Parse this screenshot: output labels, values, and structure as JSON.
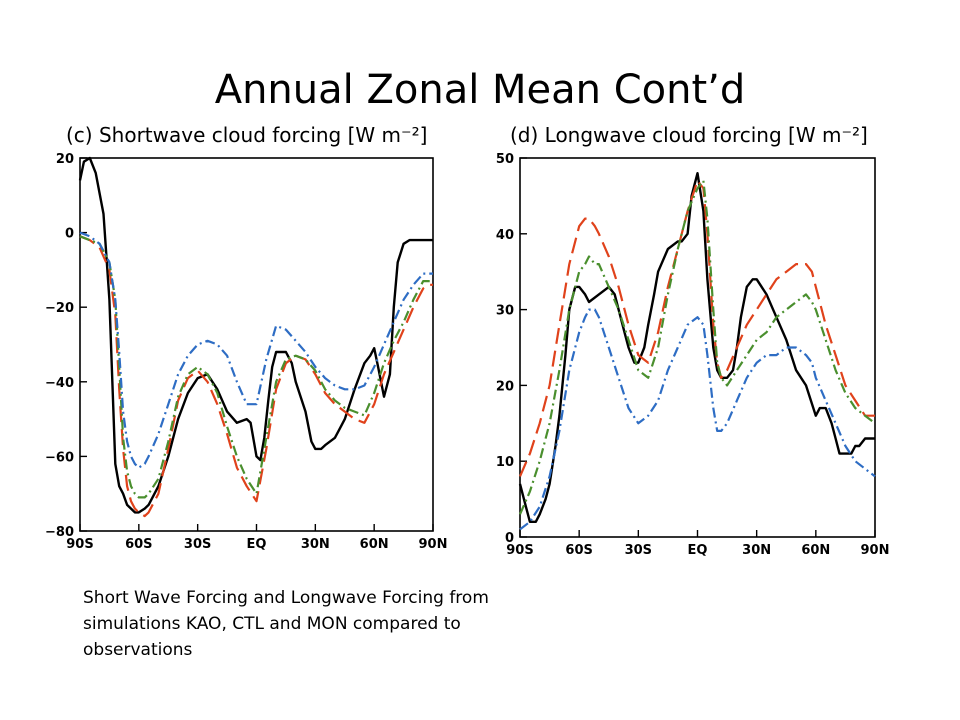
{
  "slide": {
    "title": "Annual Zonal Mean Cont’d",
    "caption": "Short Wave Forcing and Longwave Forcing from simulations KAO, CTL and MON compared to observations"
  },
  "chart_data": [
    {
      "type": "line",
      "title": "(c) Shortwave cloud forcing [W m⁻²]",
      "xlabel": "",
      "ylabel": "",
      "x_unit": "latitude (degrees N)",
      "xlim": [
        -90,
        90
      ],
      "ylim": [
        -80,
        20
      ],
      "x_ticks": [
        -90,
        -60,
        -30,
        0,
        30,
        60,
        90
      ],
      "x_tick_labels": [
        "90S",
        "60S",
        "30S",
        "EQ",
        "30N",
        "60N",
        "90N"
      ],
      "y_ticks": [
        20,
        0,
        -20,
        -40,
        -60,
        -80
      ],
      "y_tick_labels": [
        "20",
        "0",
        "−20",
        "−40",
        "−60",
        "−80"
      ],
      "grid": false,
      "series": [
        {
          "style": "solid",
          "color": "#000000",
          "x": [
            -90,
            -88,
            -85,
            -82,
            -78,
            -75,
            -72,
            -70,
            -68,
            -66,
            -64,
            -62,
            -60,
            -57,
            -55,
            -50,
            -45,
            -40,
            -35,
            -30,
            -25,
            -20,
            -15,
            -10,
            -5,
            -3,
            0,
            2,
            4,
            6,
            8,
            10,
            12,
            15,
            18,
            20,
            25,
            28,
            30,
            33,
            35,
            40,
            42,
            45,
            50,
            55,
            58,
            60,
            62,
            65,
            68,
            70,
            72,
            75,
            78,
            80,
            82,
            85,
            88,
            90
          ],
          "y": [
            14,
            19,
            20,
            16,
            5,
            -18,
            -62,
            -68,
            -70,
            -73,
            -74,
            -75,
            -75,
            -74,
            -73,
            -68,
            -60,
            -50,
            -43,
            -39,
            -38,
            -42,
            -48,
            -51,
            -50,
            -51,
            -60,
            -61,
            -55,
            -45,
            -36,
            -32,
            -32,
            -32,
            -35,
            -40,
            -48,
            -56,
            -58,
            -58,
            -57,
            -55,
            -53,
            -50,
            -42,
            -35,
            -33,
            -31,
            -36,
            -44,
            -38,
            -20,
            -8,
            -3,
            -2,
            -2,
            -2,
            -2,
            -2,
            -2
          ]
        },
        {
          "style": "dashed",
          "color": "#e0421b",
          "x": [
            -90,
            -85,
            -80,
            -75,
            -72,
            -70,
            -68,
            -66,
            -64,
            -62,
            -60,
            -57,
            -55,
            -50,
            -45,
            -40,
            -35,
            -30,
            -25,
            -20,
            -15,
            -10,
            -5,
            0,
            5,
            10,
            15,
            20,
            25,
            30,
            35,
            40,
            45,
            50,
            55,
            60,
            65,
            70,
            75,
            80,
            85,
            88,
            90
          ],
          "y": [
            -1,
            -2,
            -4,
            -10,
            -22,
            -42,
            -58,
            -68,
            -72,
            -74,
            -75,
            -76,
            -75,
            -70,
            -58,
            -45,
            -39,
            -37,
            -40,
            -46,
            -54,
            -63,
            -68,
            -72,
            -58,
            -42,
            -35,
            -33,
            -34,
            -38,
            -43,
            -46,
            -48,
            -50,
            -51,
            -46,
            -38,
            -32,
            -26,
            -20,
            -15,
            -14,
            -14
          ]
        },
        {
          "style": "dash-dot",
          "color": "#4a8f2e",
          "x": [
            -90,
            -85,
            -80,
            -75,
            -72,
            -70,
            -68,
            -66,
            -64,
            -62,
            -60,
            -57,
            -55,
            -50,
            -45,
            -40,
            -35,
            -30,
            -25,
            -20,
            -15,
            -10,
            -5,
            0,
            5,
            10,
            15,
            20,
            25,
            30,
            35,
            40,
            45,
            50,
            55,
            60,
            65,
            70,
            75,
            80,
            85,
            88,
            90
          ],
          "y": [
            -1,
            -2,
            -3,
            -8,
            -18,
            -36,
            -55,
            -64,
            -68,
            -70,
            -71,
            -71,
            -70,
            -66,
            -56,
            -44,
            -38,
            -36,
            -38,
            -43,
            -52,
            -60,
            -66,
            -70,
            -55,
            -40,
            -34,
            -33,
            -34,
            -37,
            -42,
            -45,
            -47,
            -48,
            -49,
            -43,
            -35,
            -29,
            -24,
            -18,
            -13,
            -13,
            -13
          ]
        },
        {
          "style": "dash-dot",
          "color": "#2e6dc4",
          "x": [
            -90,
            -85,
            -80,
            -75,
            -72,
            -70,
            -68,
            -66,
            -64,
            -62,
            -60,
            -57,
            -55,
            -50,
            -45,
            -40,
            -35,
            -30,
            -25,
            -20,
            -15,
            -10,
            -5,
            0,
            5,
            10,
            15,
            20,
            25,
            30,
            35,
            40,
            45,
            50,
            55,
            60,
            65,
            70,
            75,
            80,
            85,
            88,
            90
          ],
          "y": [
            0,
            -1,
            -3,
            -8,
            -18,
            -32,
            -48,
            -56,
            -60,
            -62,
            -63,
            -62,
            -60,
            -54,
            -46,
            -38,
            -33,
            -30,
            -29,
            -30,
            -33,
            -40,
            -46,
            -46,
            -34,
            -25,
            -26,
            -29,
            -32,
            -36,
            -39,
            -41,
            -42,
            -42,
            -41,
            -36,
            -30,
            -24,
            -18,
            -14,
            -11,
            -11,
            -11
          ]
        }
      ]
    },
    {
      "type": "line",
      "title": "(d) Longwave cloud forcing [W m⁻²]",
      "xlabel": "",
      "ylabel": "",
      "x_unit": "latitude (degrees N)",
      "xlim": [
        -90,
        90
      ],
      "ylim": [
        0,
        50
      ],
      "x_ticks": [
        -90,
        -60,
        -30,
        0,
        30,
        60,
        90
      ],
      "x_tick_labels": [
        "90S",
        "60S",
        "30S",
        "EQ",
        "30N",
        "60N",
        "90N"
      ],
      "y_ticks": [
        50,
        40,
        30,
        20,
        10,
        0
      ],
      "y_tick_labels": [
        "50",
        "40",
        "30",
        "20",
        "10",
        "0"
      ],
      "grid": false,
      "series": [
        {
          "style": "solid",
          "color": "#000000",
          "x": [
            -90,
            -87,
            -85,
            -82,
            -80,
            -77,
            -75,
            -72,
            -70,
            -67,
            -65,
            -62,
            -60,
            -57,
            -55,
            -50,
            -45,
            -42,
            -40,
            -37,
            -35,
            -32,
            -30,
            -27,
            -25,
            -22,
            -20,
            -15,
            -10,
            -8,
            -5,
            -3,
            0,
            3,
            5,
            7,
            8,
            10,
            12,
            15,
            18,
            20,
            22,
            25,
            28,
            30,
            35,
            40,
            45,
            50,
            55,
            60,
            62,
            65,
            68,
            70,
            72,
            75,
            78,
            80,
            82,
            85,
            88,
            90
          ],
          "y": [
            7,
            4,
            2,
            2,
            3,
            5,
            7,
            12,
            16,
            24,
            30,
            33,
            33,
            32,
            31,
            32,
            33,
            32,
            30,
            27,
            25,
            23,
            23,
            25,
            28,
            32,
            35,
            38,
            39,
            39,
            40,
            45,
            48,
            43,
            34,
            28,
            25,
            22,
            21,
            21,
            22,
            25,
            29,
            33,
            34,
            34,
            32,
            29,
            26,
            22,
            20,
            16,
            17,
            17,
            15,
            13,
            11,
            11,
            11,
            12,
            12,
            13,
            13,
            13
          ]
        },
        {
          "style": "dashed",
          "color": "#e0421b",
          "x": [
            -90,
            -85,
            -80,
            -75,
            -70,
            -65,
            -60,
            -57,
            -55,
            -52,
            -50,
            -45,
            -40,
            -35,
            -30,
            -25,
            -20,
            -15,
            -10,
            -5,
            0,
            3,
            5,
            8,
            10,
            12,
            15,
            20,
            25,
            30,
            35,
            40,
            45,
            50,
            55,
            58,
            60,
            65,
            70,
            75,
            80,
            85,
            90
          ],
          "y": [
            8,
            11,
            15,
            20,
            28,
            36,
            41,
            42,
            42,
            41,
            40,
            37,
            33,
            28,
            24,
            23,
            27,
            33,
            38,
            43,
            47,
            46,
            40,
            28,
            23,
            21,
            22,
            25,
            28,
            30,
            32,
            34,
            35,
            36,
            36,
            35,
            33,
            28,
            24,
            20,
            18,
            16,
            16
          ]
        },
        {
          "style": "dash-dot",
          "color": "#4a8f2e",
          "x": [
            -90,
            -85,
            -80,
            -75,
            -70,
            -65,
            -60,
            -57,
            -55,
            -52,
            -50,
            -45,
            -40,
            -35,
            -30,
            -25,
            -20,
            -15,
            -10,
            -5,
            0,
            3,
            5,
            8,
            10,
            12,
            15,
            20,
            25,
            30,
            35,
            40,
            45,
            50,
            55,
            58,
            60,
            65,
            70,
            75,
            80,
            85,
            90
          ],
          "y": [
            3,
            6,
            10,
            15,
            22,
            30,
            35,
            36,
            37,
            36,
            36,
            33,
            30,
            26,
            22,
            21,
            25,
            32,
            38,
            43,
            46,
            47,
            42,
            30,
            23,
            21,
            20,
            22,
            24,
            26,
            27,
            29,
            30,
            31,
            32,
            31,
            30,
            26,
            22,
            19,
            17,
            16,
            15
          ]
        },
        {
          "style": "dash-dot",
          "color": "#2e6dc4",
          "x": [
            -90,
            -85,
            -80,
            -75,
            -70,
            -65,
            -60,
            -57,
            -55,
            -52,
            -50,
            -45,
            -40,
            -35,
            -30,
            -25,
            -20,
            -15,
            -10,
            -5,
            0,
            3,
            5,
            8,
            10,
            12,
            15,
            20,
            25,
            30,
            35,
            40,
            45,
            50,
            55,
            58,
            60,
            65,
            70,
            75,
            80,
            85,
            90
          ],
          "y": [
            1,
            2,
            4,
            8,
            14,
            22,
            27,
            29,
            30,
            30,
            29,
            25,
            21,
            17,
            15,
            16,
            18,
            22,
            25,
            28,
            29,
            28,
            24,
            17,
            14,
            14,
            15,
            18,
            21,
            23,
            24,
            24,
            25,
            25,
            24,
            23,
            21,
            18,
            15,
            12,
            10,
            9,
            8
          ]
        }
      ]
    }
  ]
}
